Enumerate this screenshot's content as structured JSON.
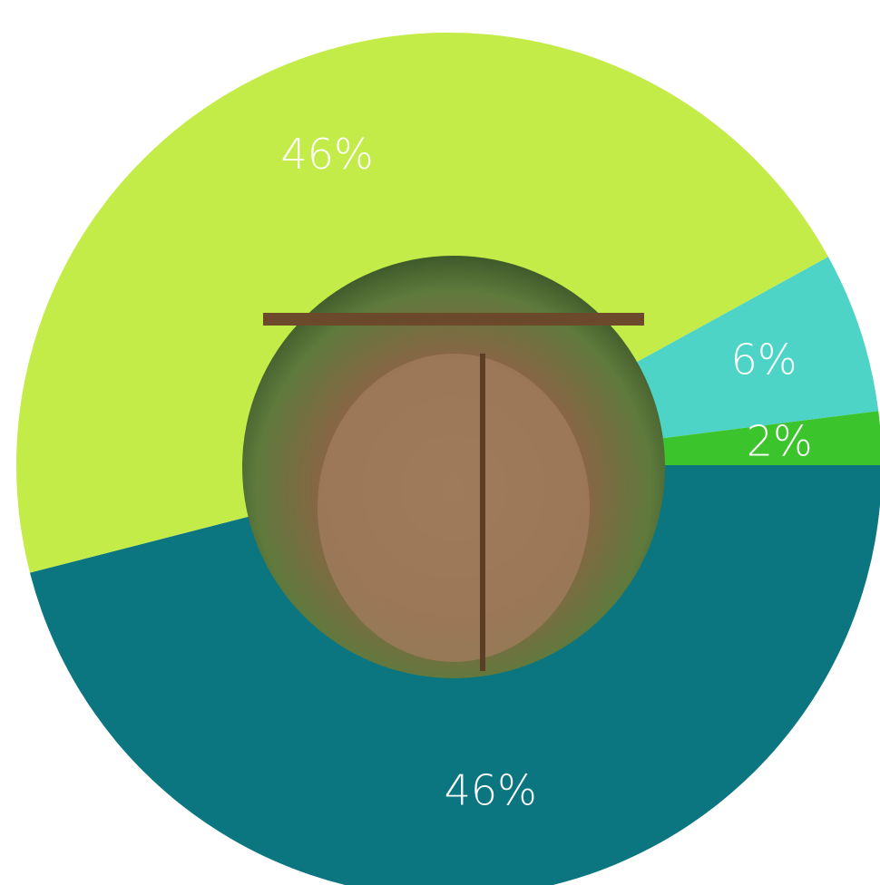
{
  "chart_data": {
    "type": "donut",
    "categories": [
      null,
      null,
      null,
      null
    ],
    "values": [
      46,
      46,
      6,
      2
    ],
    "value_labels": [
      "46%",
      "46%",
      "6%",
      "2%"
    ],
    "colors": [
      "#0b7680",
      "#c3ec48",
      "#4dd4c6",
      "#3cc42d"
    ]
  }
}
